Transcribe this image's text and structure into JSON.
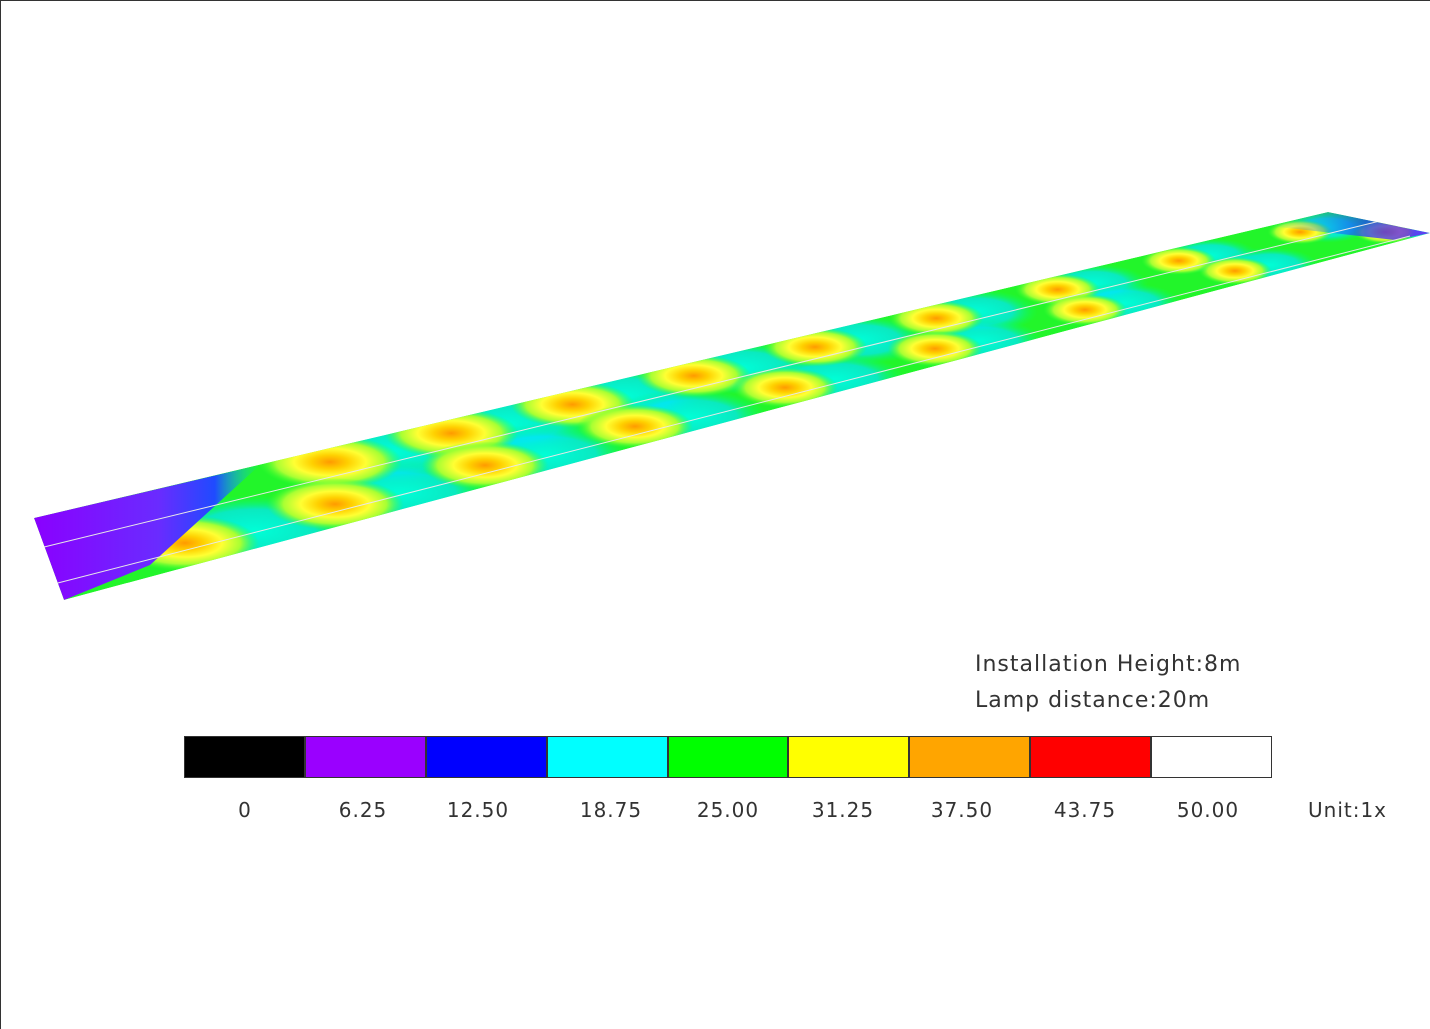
{
  "info": {
    "installation_height": "Installation Height:8m",
    "lamp_distance": "Lamp distance:20m"
  },
  "chart_data": {
    "type": "heatmap",
    "title": "",
    "unit": "Unit:1x",
    "legend": {
      "ticks": [
        "0",
        "6.25",
        "12.50",
        "18.75",
        "25.00",
        "31.25",
        "37.50",
        "43.75",
        "50.00"
      ],
      "colors": [
        "#000000",
        "#9a00ff",
        "#0000ff",
        "#00ffff",
        "#00ff00",
        "#ffff00",
        "#ffa500",
        "#ff0000",
        "#ffffff"
      ]
    },
    "road": {
      "lanes": 2,
      "lamp_spacing_m": 20,
      "installation_height_m": 8,
      "background_level": 25.0,
      "near_lane_hotspots": 9,
      "far_lane_hotspots": 9,
      "hotspot_peak_level": 37.5,
      "start_end_min_level": 6.25
    }
  }
}
